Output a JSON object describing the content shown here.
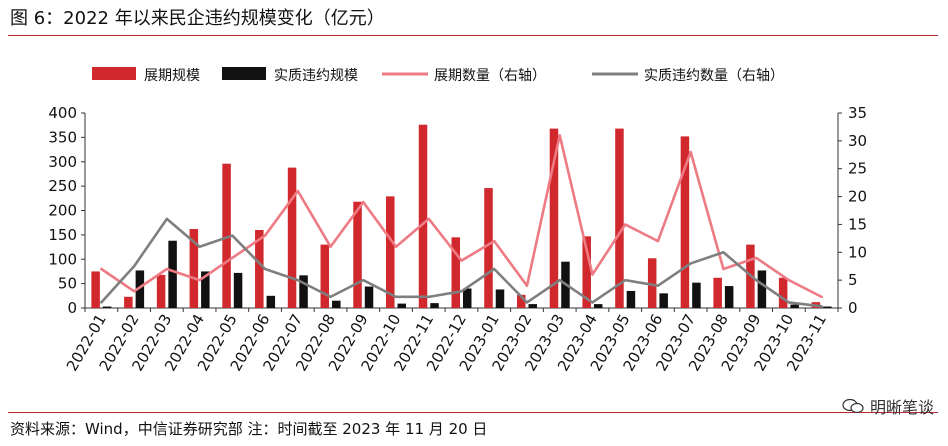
{
  "header": {
    "title": "图 6：2022 年以来民企违约规模变化（亿元）"
  },
  "footer": {
    "source": "资料来源：Wind，中信证券研究部  注：时间截至 2023 年 11 月 20 日",
    "watermark": "明晰笔谈",
    "watermark_icon": "wechat-icon"
  },
  "colors": {
    "bar_extension": "#d0282c",
    "bar_default": "#111111",
    "line_extension": "#ee7a84",
    "line_default": "#7f7f7f",
    "rule": "#c0272d"
  },
  "chart_data": {
    "type": "bar+line",
    "categories": [
      "2022-01",
      "2022-02",
      "2022-03",
      "2022-04",
      "2022-05",
      "2022-06",
      "2022-07",
      "2022-08",
      "2022-09",
      "2022-10",
      "2022-11",
      "2022-12",
      "2023-01",
      "2023-02",
      "2023-03",
      "2023-04",
      "2023-05",
      "2023-06",
      "2023-07",
      "2023-08",
      "2023-09",
      "2023-10",
      "2023-11"
    ],
    "ylim_left": [
      0,
      400
    ],
    "yticks_left": [
      0,
      50,
      100,
      150,
      200,
      250,
      300,
      350,
      400
    ],
    "ylim_right": [
      0,
      35
    ],
    "yticks_right": [
      0,
      5,
      10,
      15,
      20,
      25,
      30,
      35
    ],
    "legend_position": "top",
    "series": [
      {
        "name": "展期规模",
        "type": "bar",
        "axis": "left",
        "values": [
          75,
          23,
          68,
          162,
          296,
          160,
          288,
          130,
          218,
          229,
          376,
          145,
          246,
          27,
          368,
          147,
          368,
          102,
          352,
          62,
          130,
          62,
          12
        ]
      },
      {
        "name": "实质违约规模",
        "type": "bar",
        "axis": "left",
        "values": [
          3,
          77,
          138,
          75,
          72,
          25,
          67,
          15,
          44,
          9,
          10,
          40,
          38,
          8,
          95,
          8,
          35,
          30,
          52,
          45,
          77,
          7,
          3
        ]
      },
      {
        "name": "展期数量（右轴）",
        "type": "line",
        "axis": "right",
        "values": [
          7,
          3,
          7,
          5,
          9,
          13,
          21,
          11,
          19,
          11,
          16,
          8.5,
          12,
          4,
          31,
          6,
          15,
          12,
          28,
          7,
          9,
          5,
          2
        ]
      },
      {
        "name": "实质违约数量（右轴）",
        "type": "line",
        "axis": "right",
        "values": [
          1,
          7.5,
          16,
          11,
          13,
          7,
          5,
          2,
          5,
          2,
          2,
          3,
          7,
          1,
          5,
          1,
          5,
          4,
          8,
          10,
          5,
          1,
          0.3
        ]
      }
    ]
  }
}
